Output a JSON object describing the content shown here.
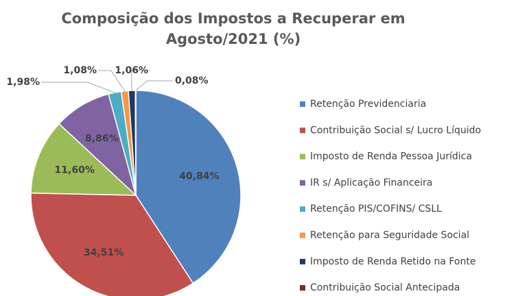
{
  "chart_data": {
    "type": "pie",
    "title": "Composição dos Impostos a Recuperar em Agosto/2021 (%)",
    "categories": [
      "Retenção Previdenciaria",
      "Contribuição Social s/ Lucro Líquido",
      "Imposto de Renda Pessoa Jurídica",
      "IR s/ Aplicação Financeira",
      "Retenção PIS/COFINS/ CSLL",
      "Retenção para Seguridade Social",
      "Imposto de Renda Retido na Fonte",
      "Contribuição Social Antecipada"
    ],
    "values": [
      40.84,
      34.51,
      11.6,
      8.86,
      1.98,
      1.08,
      1.06,
      0.08
    ],
    "value_labels": [
      "40,84%",
      "34,51%",
      "11,60%",
      "8,86%",
      "1,98%",
      "1,08%",
      "1,06%",
      "0,08%"
    ],
    "colors": [
      "#4f81bd",
      "#c0504d",
      "#9bbb59",
      "#8064a2",
      "#4bacc6",
      "#f79646",
      "#1f3864",
      "#7b2c1c"
    ],
    "legend": "right"
  }
}
